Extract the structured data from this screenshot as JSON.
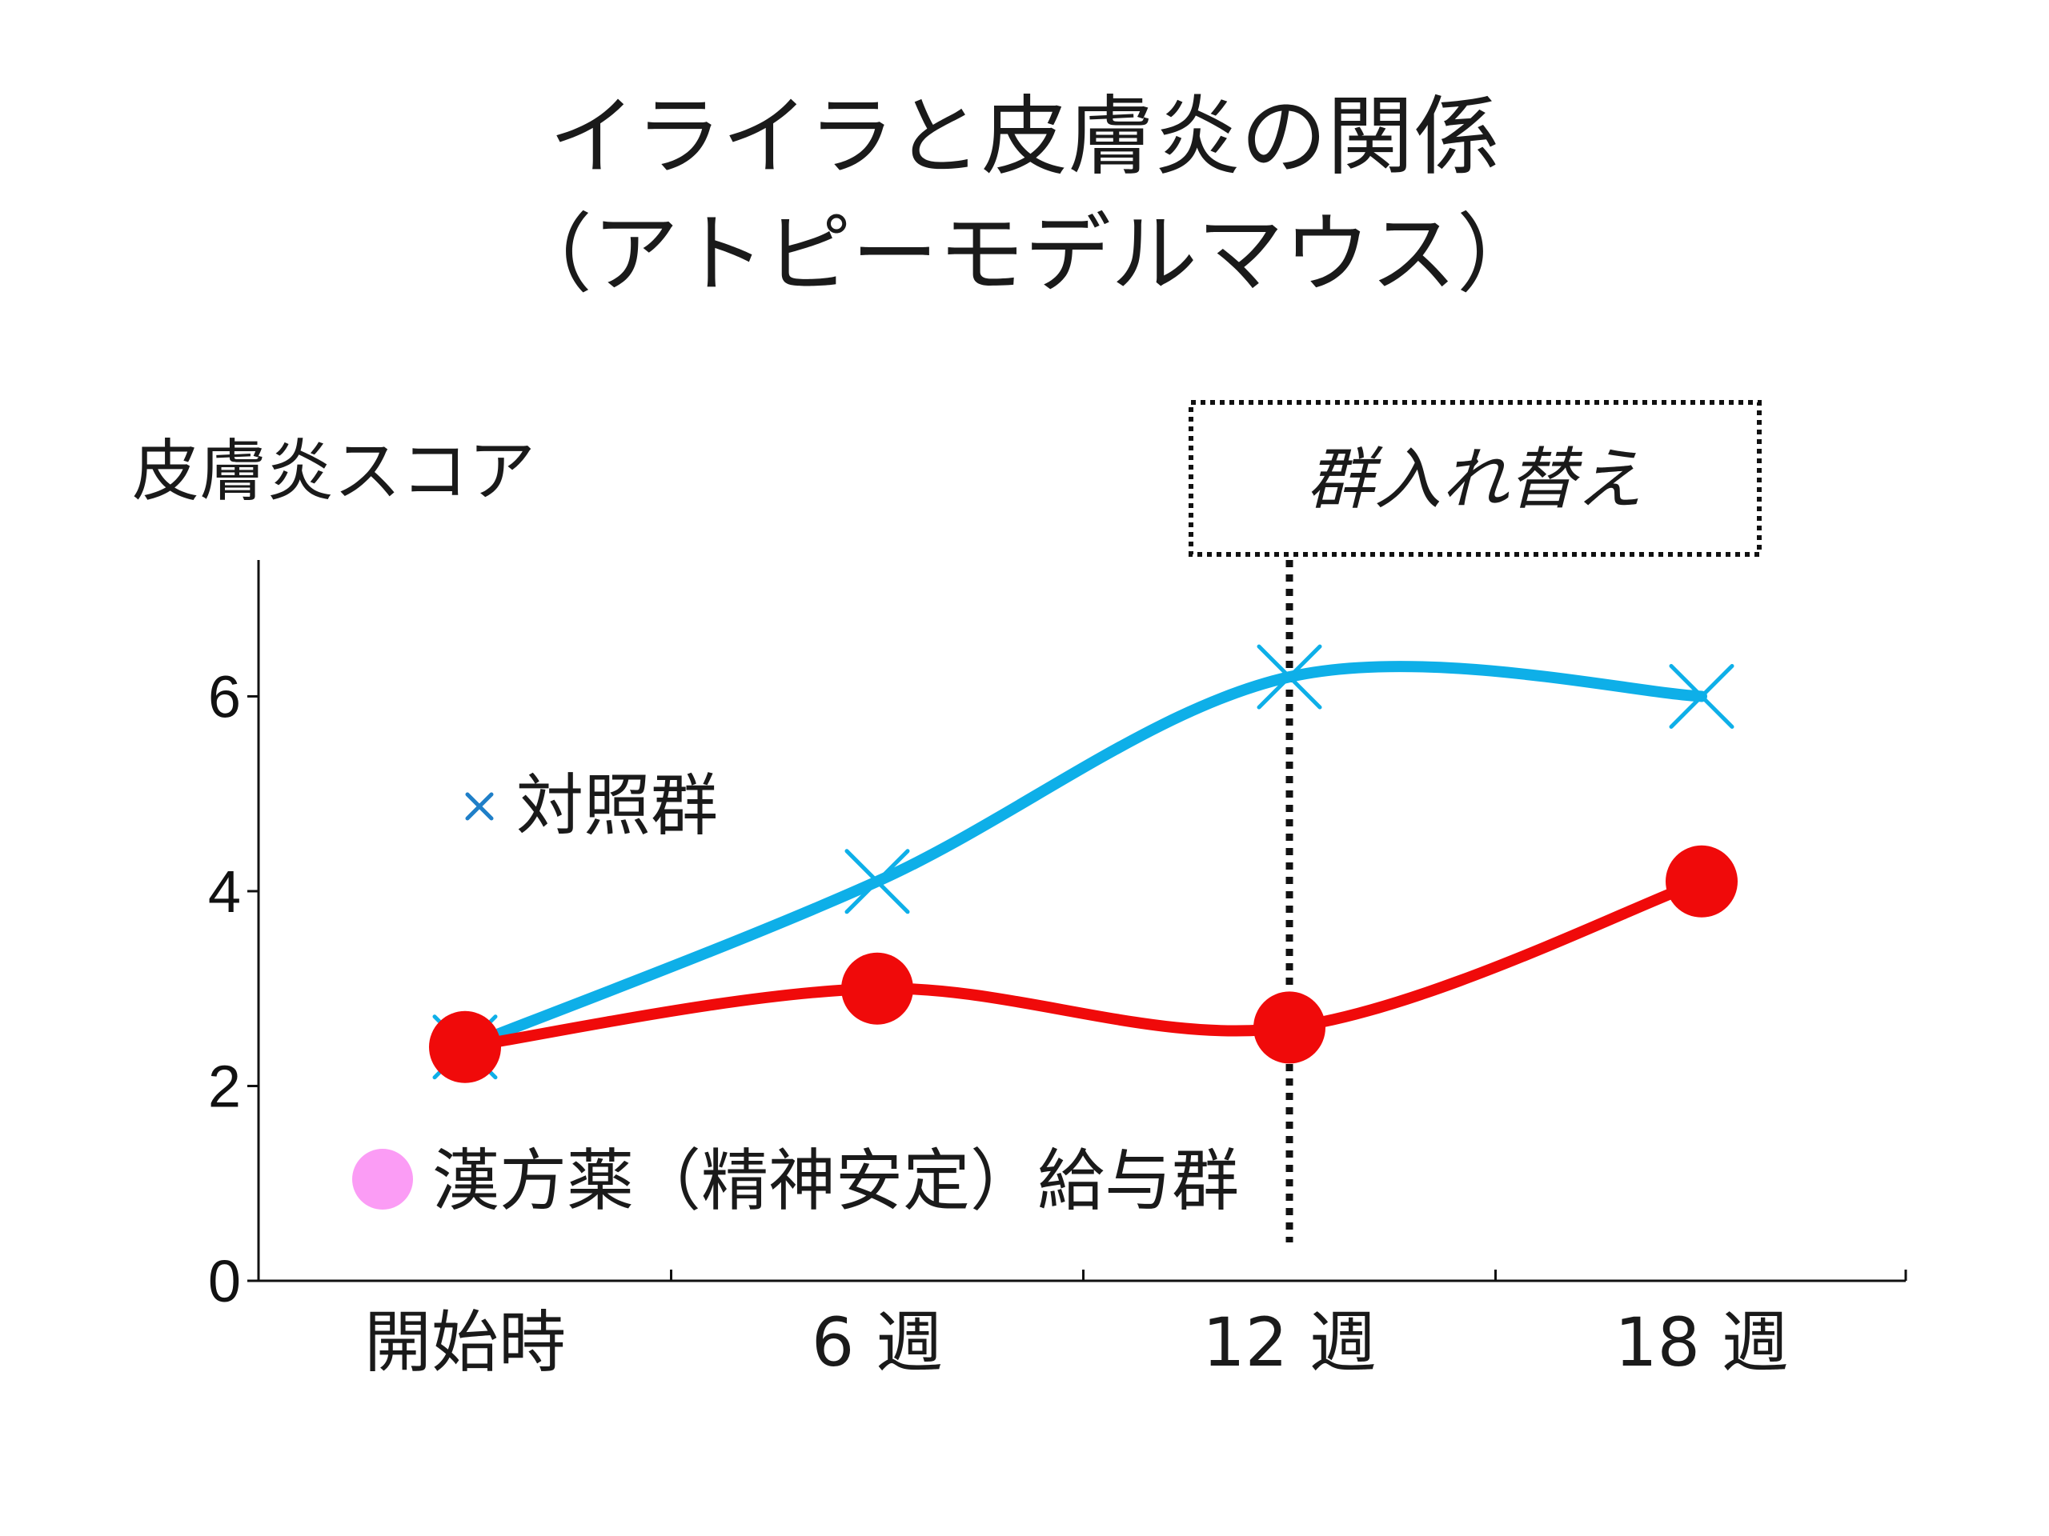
{
  "chart_data": {
    "type": "line",
    "title": "イライラと皮膚炎の関係",
    "subtitle": "（アトピーモデルマウス）",
    "ylabel": "皮膚炎スコア",
    "xlabel": "",
    "categories": [
      "開始時",
      "6 週",
      "12 週",
      "18 週"
    ],
    "yticks": [
      "0",
      "2",
      "4",
      "6"
    ],
    "ylim": [
      0,
      7.4
    ],
    "series": [
      {
        "name": "対照群",
        "values": [
          2.4,
          4.1,
          6.2,
          6.0
        ],
        "color": "#0EAFE8",
        "marker": "x"
      },
      {
        "name": "漢方薬（精神安定）給与群",
        "values": [
          2.4,
          3.0,
          2.6,
          4.1
        ],
        "color": "#F00A0A",
        "marker": "circle"
      }
    ],
    "legend": [
      {
        "label": "対照群",
        "marker": "x",
        "color": "#1F7FC8"
      },
      {
        "label": "漢方薬（精神安定）給与群",
        "marker": "circle",
        "color": "#FB9CF5"
      }
    ],
    "annotation": {
      "label": "群入れ替え",
      "at_category": "12 週"
    },
    "grid": false
  }
}
